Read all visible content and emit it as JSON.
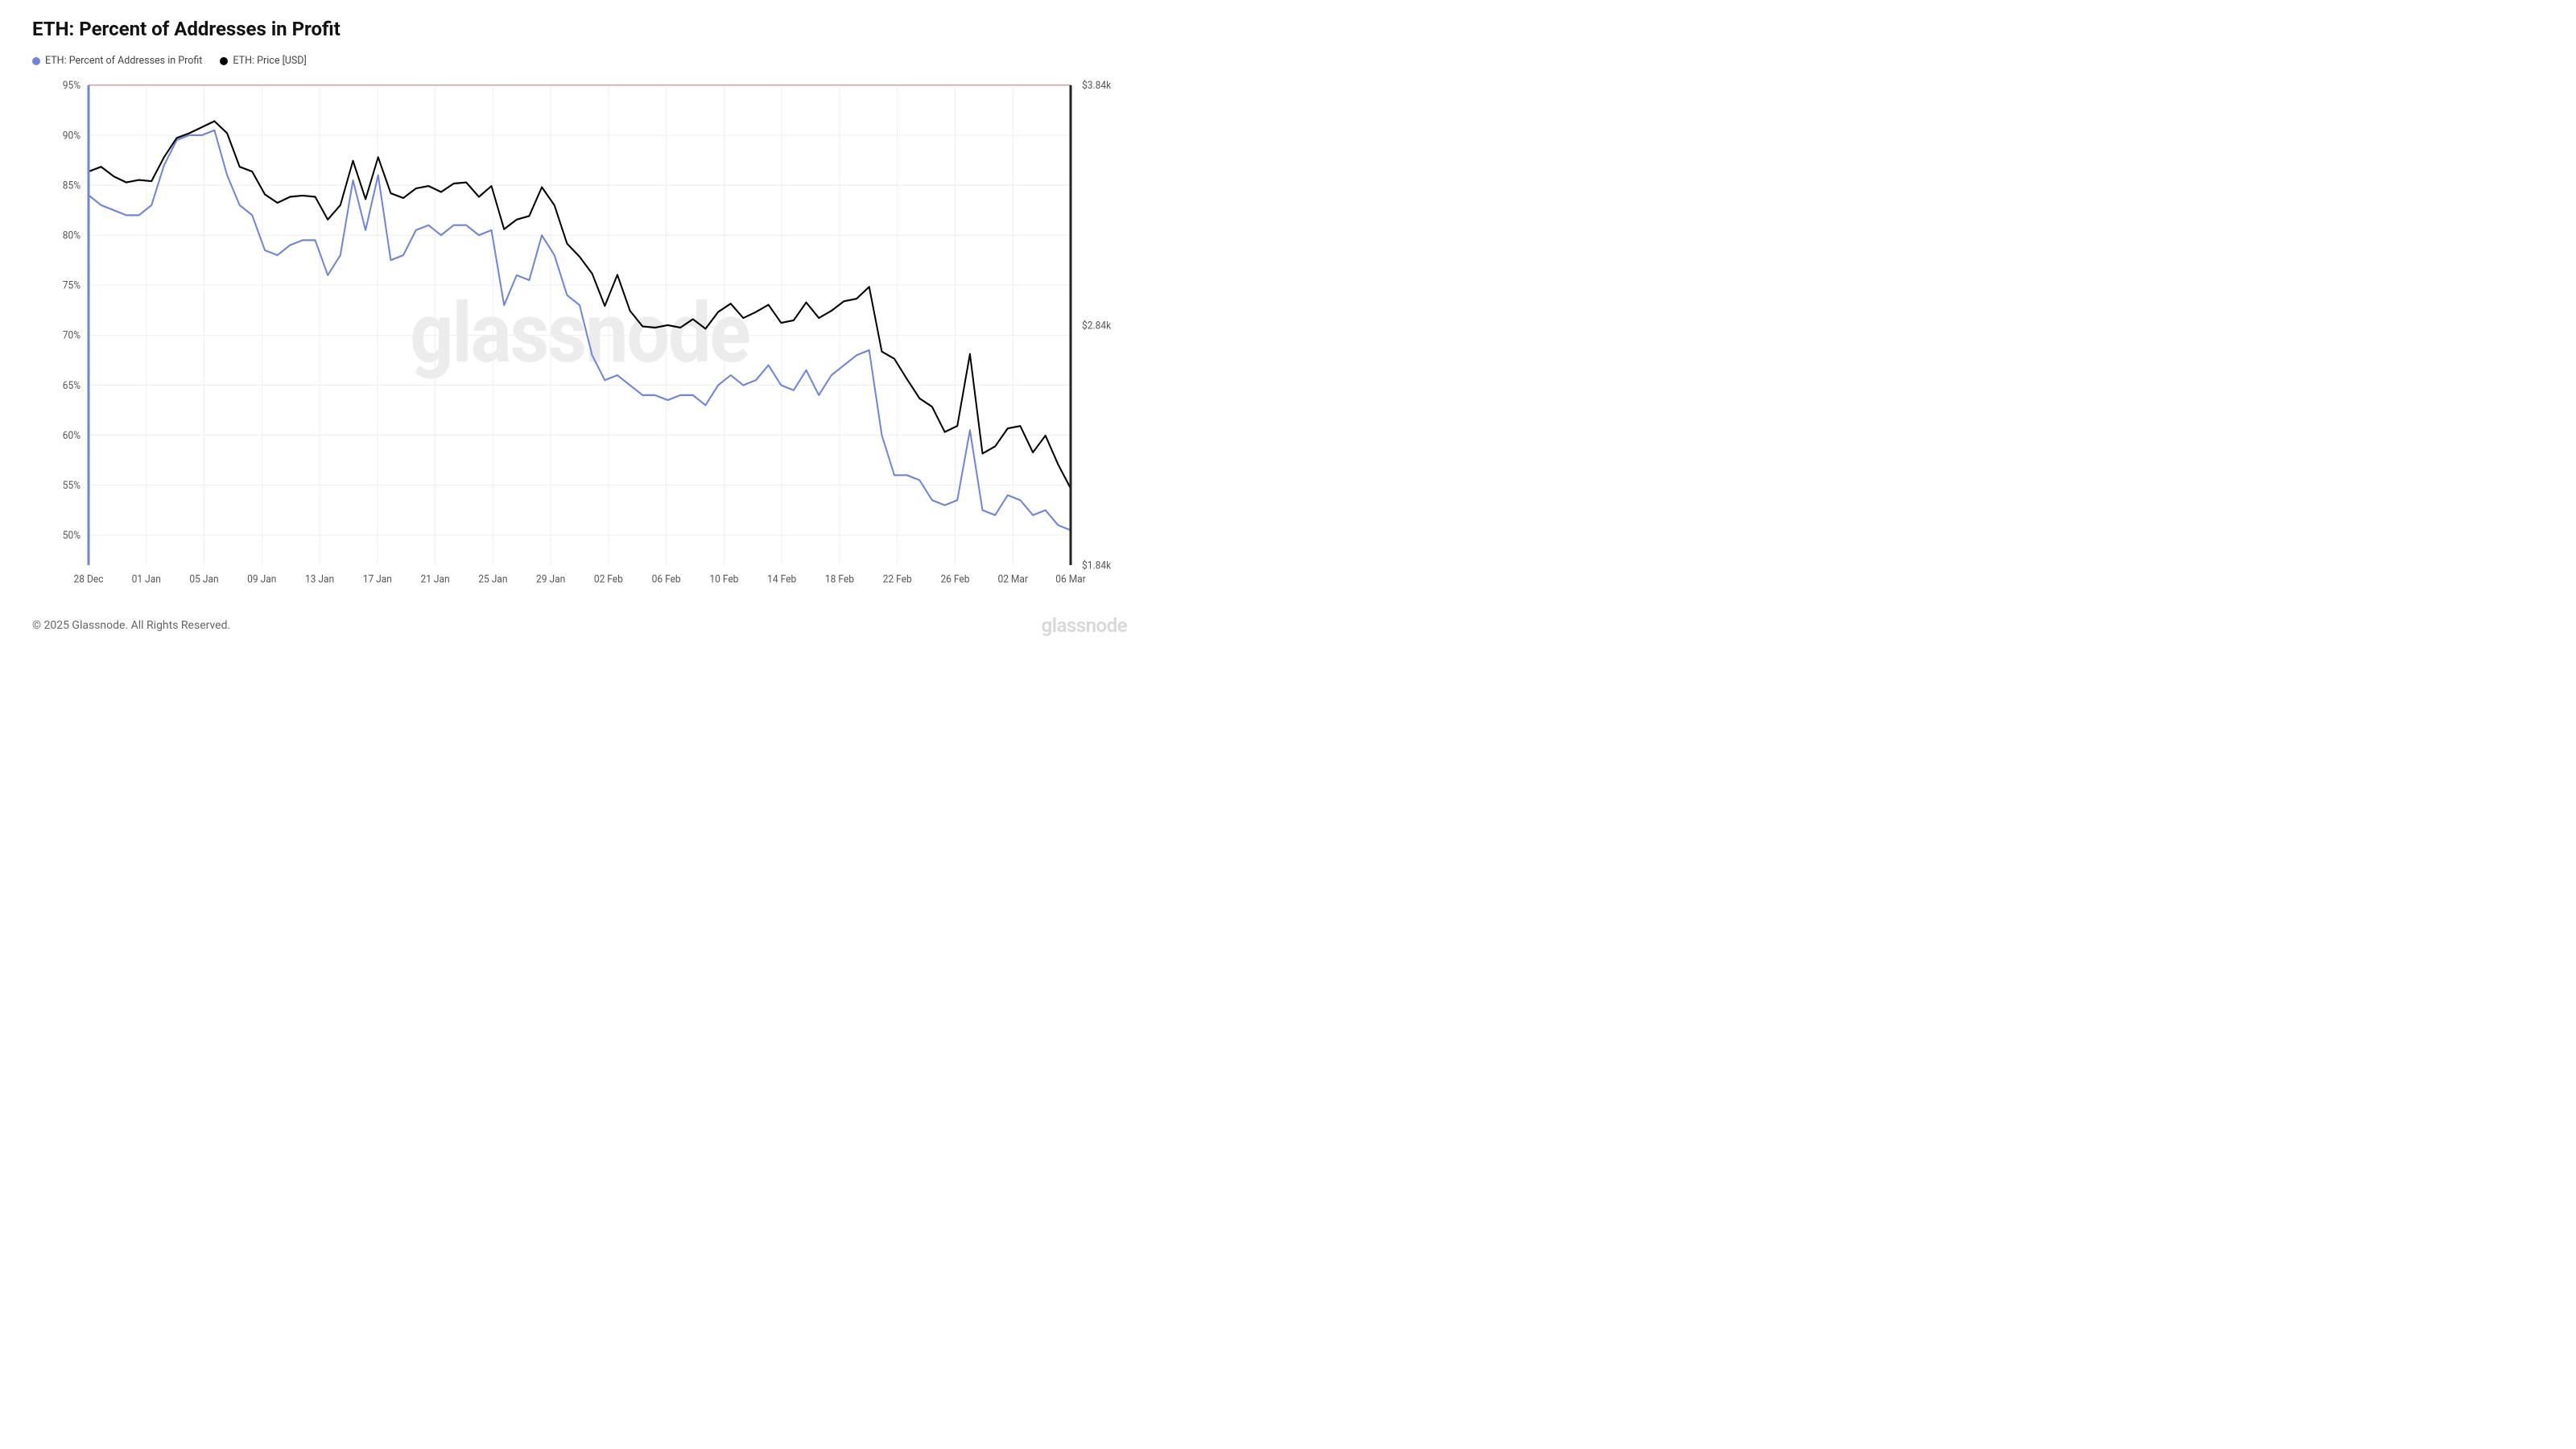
{
  "title": "ETH: Percent of Addresses in Profit",
  "legend": {
    "series1": {
      "label": "ETH: Percent of Addresses in Profit",
      "color": "#6e85e0"
    },
    "series2": {
      "label": "ETH: Price [USD]",
      "color": "#000000"
    }
  },
  "chart": {
    "type": "line",
    "background_color": "#ffffff",
    "grid_color": "#efefef",
    "watermark_text": "glassnode",
    "watermark_color": "#edecec",
    "x": {
      "labels": [
        "28 Dec",
        "01 Jan",
        "05 Jan",
        "09 Jan",
        "13 Jan",
        "17 Jan",
        "21 Jan",
        "25 Jan",
        "29 Jan",
        "02 Feb",
        "06 Feb",
        "10 Feb",
        "14 Feb",
        "18 Feb",
        "22 Feb",
        "26 Feb",
        "02 Mar",
        "06 Mar"
      ],
      "label_fontsize": 12,
      "label_color": "#555555"
    },
    "y_left": {
      "min": 47,
      "max": 95,
      "ticks": [
        50,
        55,
        60,
        65,
        70,
        75,
        80,
        85,
        90,
        95
      ],
      "tick_suffix": "%",
      "label_fontsize": 12,
      "axis_bar_color": "#6e85e0"
    },
    "y_right": {
      "min": 1840,
      "max": 3840,
      "ticks": [
        1840,
        2840,
        3840
      ],
      "tick_labels": [
        "$1.84k",
        "$2.84k",
        "$3.84k"
      ],
      "label_fontsize": 12,
      "axis_bar_color": "#222222"
    },
    "reference_line": {
      "y_left_value": 95,
      "color": "#e05a5a"
    },
    "series": [
      {
        "name": "percent_profit",
        "color": "#6e85e0",
        "axis": "left",
        "line_width": 2,
        "data": [
          84,
          83,
          82.5,
          82,
          82,
          83,
          87,
          89.5,
          90,
          90,
          90.5,
          86,
          83,
          82,
          78.5,
          78,
          79,
          79.5,
          79.5,
          76,
          78,
          85.5,
          80.5,
          86,
          77.5,
          78,
          80.5,
          81,
          80,
          81,
          81,
          80,
          80.5,
          73,
          76,
          75.5,
          80,
          78,
          74,
          73,
          68,
          65.5,
          66,
          65,
          64,
          64,
          63.5,
          64,
          64,
          63,
          65,
          66,
          65,
          65.5,
          67,
          65,
          64.5,
          66.5,
          64,
          66,
          67,
          68,
          68.5,
          60,
          56,
          56,
          55.5,
          53.5,
          53,
          53.5,
          60.5,
          52.5,
          52,
          54,
          53.5,
          52,
          52.5,
          51,
          50.5
        ]
      },
      {
        "name": "price_usd",
        "color": "#000000",
        "axis": "right",
        "line_width": 2,
        "data": [
          3480,
          3500,
          3460,
          3435,
          3445,
          3440,
          3540,
          3620,
          3640,
          3665,
          3690,
          3640,
          3500,
          3480,
          3385,
          3350,
          3375,
          3380,
          3375,
          3280,
          3340,
          3525,
          3365,
          3540,
          3390,
          3370,
          3410,
          3420,
          3395,
          3430,
          3435,
          3375,
          3420,
          3240,
          3280,
          3295,
          3415,
          3340,
          3180,
          3125,
          3055,
          2920,
          3050,
          2900,
          2835,
          2830,
          2840,
          2830,
          2865,
          2825,
          2895,
          2930,
          2870,
          2895,
          2925,
          2850,
          2860,
          2935,
          2870,
          2900,
          2940,
          2950,
          3000,
          2730,
          2700,
          2615,
          2535,
          2500,
          2395,
          2420,
          2720,
          2305,
          2335,
          2410,
          2420,
          2310,
          2380,
          2260,
          2160
        ]
      }
    ]
  },
  "footer": {
    "copyright": "© 2025 Glassnode. All Rights Reserved.",
    "brand": "glassnode"
  }
}
